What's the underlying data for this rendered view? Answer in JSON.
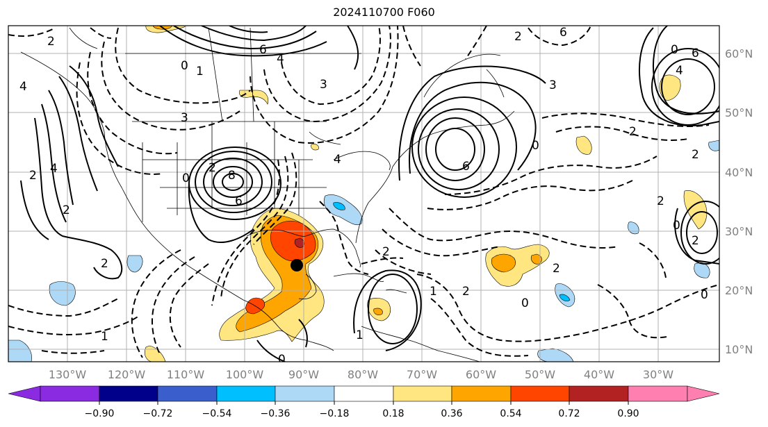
{
  "title": "2024110700 F060",
  "lon_labels": [
    "130°W",
    "120°W",
    "110°W",
    "100°W",
    "90°W",
    "80°W",
    "70°W",
    "60°W",
    "50°W",
    "40°W",
    "30°W"
  ],
  "lat_labels": [
    "60°N",
    "50°N",
    "40°N",
    "30°N",
    "20°N",
    "10°N"
  ],
  "colorbar": {
    "ticks": [
      "−0.90",
      "−0.72",
      "−0.54",
      "−0.36",
      "−0.18",
      "0.18",
      "0.36",
      "0.54",
      "0.72",
      "0.90"
    ],
    "colors": [
      "#8a2be2",
      "#00008b",
      "#3a5fcd",
      "#00bfff",
      "#add8f6",
      "#ffffff",
      "#ffe680",
      "#ffa500",
      "#ff4500",
      "#b22222",
      "#ff80b0"
    ]
  },
  "contour_labels": [
    "2",
    "6",
    "4",
    "3",
    "0",
    "1",
    "3",
    "2",
    "8",
    "6",
    "0",
    "2",
    "4",
    "4",
    "6",
    "2",
    "6",
    "0",
    "6",
    "4",
    "3",
    "0",
    "2",
    "2",
    "2",
    "2",
    "0",
    "1",
    "0",
    "2",
    "1",
    "2",
    "0",
    "2",
    "1",
    "4",
    "0",
    "2",
    "2"
  ],
  "marker": "storm-center"
}
